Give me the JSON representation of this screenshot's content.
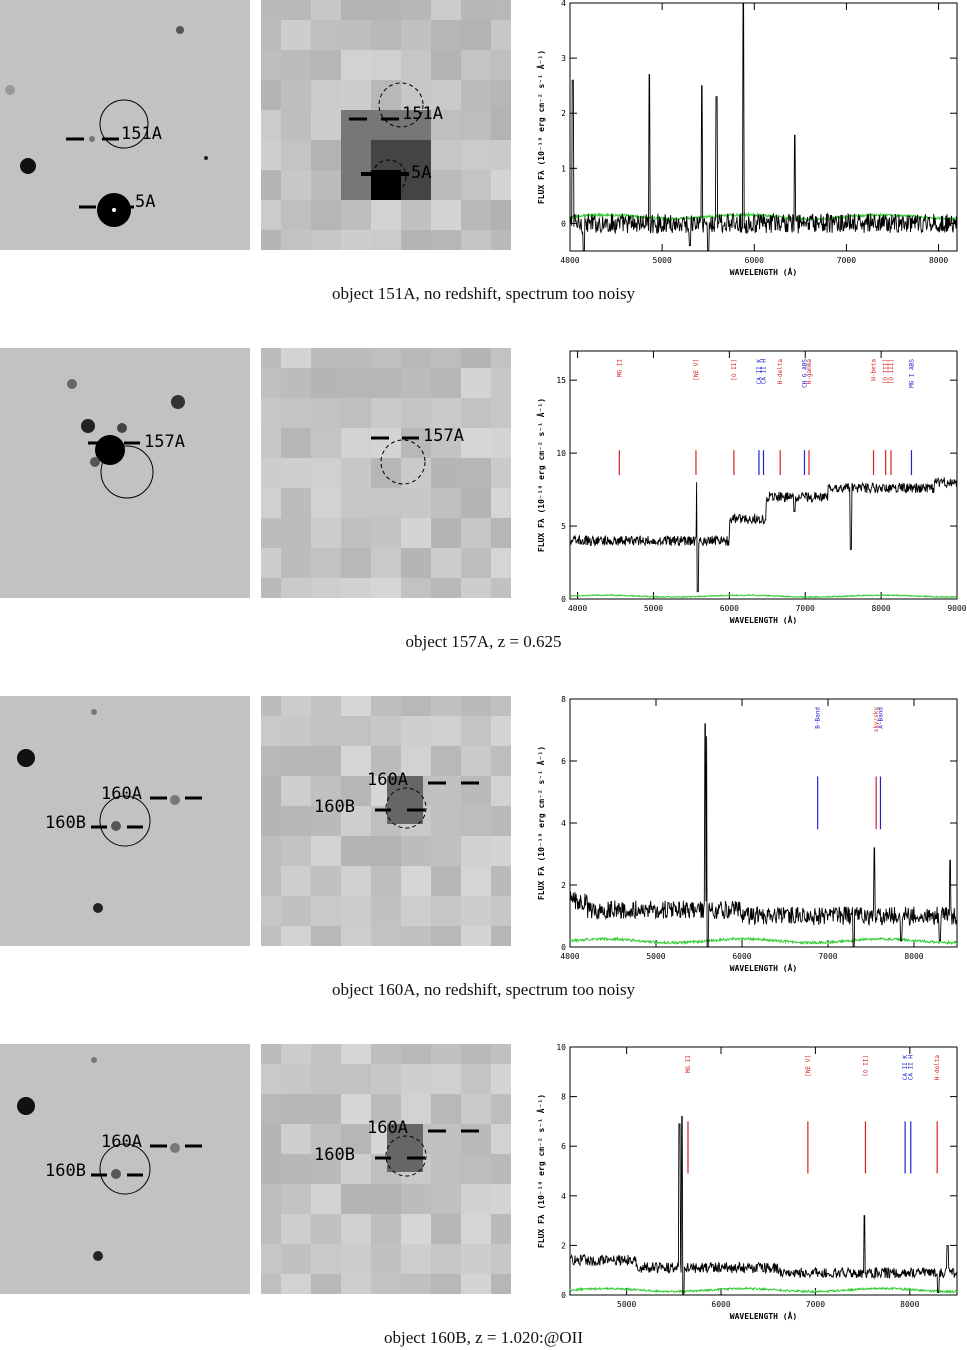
{
  "colors": {
    "flux": "#000000",
    "error": "#33cc33",
    "emission_line": "#d62020",
    "absorption_line": "#2020d6",
    "axis": "#000000"
  },
  "panels": [
    {
      "caption": "object 151A, no redshift, spectrum too noisy",
      "hst_labels": [
        "151A",
        "5A"
      ],
      "ground_labels": [
        "151A",
        "5A"
      ],
      "chart_data": {
        "type": "line",
        "xlabel": "WAVELENGTH (Å)",
        "ylabel": "FLUX Fλ (10⁻¹⁸ erg cm⁻² s⁻¹ Å⁻¹)",
        "xlim": [
          4000,
          8200
        ],
        "ylim": [
          -0.5,
          4
        ],
        "xticks": [
          4000,
          5000,
          6000,
          7000,
          8000
        ],
        "yticks": [
          0,
          1,
          2,
          3,
          4
        ],
        "baseline": 0.0,
        "noise": 0.18,
        "error_level": 0.12,
        "spikes": [
          [
            4030,
            2.6
          ],
          [
            4860,
            2.7
          ],
          [
            5430,
            2.5
          ],
          [
            5590,
            2.3
          ],
          [
            5880,
            4.0
          ],
          [
            6440,
            1.6
          ]
        ],
        "dips": [
          [
            4150,
            -0.5
          ],
          [
            5500,
            -0.5
          ],
          [
            5300,
            -0.4
          ]
        ],
        "steps": [],
        "line_markers": []
      }
    },
    {
      "caption": "object 157A, z = 0.625",
      "hst_labels": [
        "157A"
      ],
      "ground_labels": [
        "157A"
      ],
      "chart_data": {
        "type": "line",
        "xlabel": "WAVELENGTH (Å)",
        "ylabel": "FLUX Fλ (10⁻¹⁸ erg cm⁻² s⁻¹ Å⁻¹)",
        "xlim": [
          3900,
          9000
        ],
        "ylim": [
          0,
          17
        ],
        "xticks": [
          4000,
          5000,
          6000,
          7000,
          8000,
          9000
        ],
        "yticks": [
          0,
          5,
          10,
          15
        ],
        "baseline": 4.0,
        "noise": 0.35,
        "error_level": 0.2,
        "spikes": [
          [
            5570,
            8.0
          ]
        ],
        "dips": [
          [
            5580,
            0.5
          ],
          [
            7600,
            3.4
          ],
          [
            6860,
            6.0
          ]
        ],
        "steps": [
          [
            6000,
            1.5
          ],
          [
            6480,
            1.5
          ],
          [
            7300,
            0.6
          ],
          [
            8700,
            0.4
          ]
        ],
        "line_markers": [
          {
            "label": "MG II",
            "x": 4550,
            "kind": "emission"
          },
          {
            "label": "[NE V]",
            "x": 5560,
            "kind": "emission"
          },
          {
            "label": "[O II]",
            "x": 6060,
            "kind": "emission"
          },
          {
            "label": "CA II K",
            "x": 6390,
            "kind": "absorption"
          },
          {
            "label": "CA II H",
            "x": 6450,
            "kind": "absorption"
          },
          {
            "label": "H-delta",
            "x": 6670,
            "kind": "emission"
          },
          {
            "label": "CH G ABS",
            "x": 6990,
            "kind": "absorption"
          },
          {
            "label": "H-gamma",
            "x": 7050,
            "kind": "emission"
          },
          {
            "label": "H-beta",
            "x": 7900,
            "kind": "emission"
          },
          {
            "label": "[O III]",
            "x": 8060,
            "kind": "emission"
          },
          {
            "label": "[O III]",
            "x": 8130,
            "kind": "emission"
          },
          {
            "label": "MG I ABS",
            "x": 8400,
            "kind": "absorption"
          }
        ]
      }
    },
    {
      "caption": "object 160A, no redshift, spectrum too noisy",
      "hst_labels": [
        "160A",
        "160B"
      ],
      "ground_labels": [
        "160A",
        "160B"
      ],
      "chart_data": {
        "type": "line",
        "xlabel": "WAVELENGTH (Å)",
        "ylabel": "FLUX Fλ (10⁻¹⁸ erg cm⁻² s⁻¹ Å⁻¹)",
        "xlim": [
          4000,
          8500
        ],
        "ylim": [
          0,
          8
        ],
        "xticks": [
          4000,
          5000,
          6000,
          7000,
          8000
        ],
        "yticks": [
          0,
          2,
          4,
          6,
          8
        ],
        "baseline": 1.5,
        "noise": 0.3,
        "error_level": 0.2,
        "spikes": [
          [
            5570,
            7.2
          ],
          [
            5590,
            6.8
          ],
          [
            7540,
            3.2
          ],
          [
            8420,
            2.8
          ]
        ],
        "dips": [
          [
            5600,
            0.0
          ],
          [
            7300,
            0.0
          ],
          [
            7850,
            0.2
          ],
          [
            8300,
            0.2
          ]
        ],
        "steps": [
          [
            4200,
            -0.3
          ],
          [
            6000,
            -0.2
          ]
        ],
        "line_markers": [
          {
            "label": "B-Band",
            "x": 6880,
            "kind": "absorption"
          },
          {
            "label": "sky/sky",
            "x": 7560,
            "kind": "emission"
          },
          {
            "label": "A-Band",
            "x": 7610,
            "kind": "absorption"
          }
        ]
      }
    },
    {
      "caption": "object 160B, z = 1.020:@OII",
      "hst_labels": [
        "160A",
        "160B"
      ],
      "ground_labels": [
        "160A",
        "160B"
      ],
      "chart_data": {
        "type": "line",
        "xlabel": "WAVELENGTH (Å)",
        "ylabel": "FLUX Fλ (10⁻¹⁸ erg cm⁻² s⁻¹ Å⁻¹)",
        "xlim": [
          4400,
          8500
        ],
        "ylim": [
          0,
          10
        ],
        "xticks": [
          5000,
          6000,
          7000,
          8000
        ],
        "yticks": [
          0,
          2,
          4,
          6,
          8,
          10
        ],
        "baseline": 1.4,
        "noise": 0.22,
        "error_level": 0.2,
        "spikes": [
          [
            5560,
            6.9
          ],
          [
            5590,
            7.2
          ],
          [
            7520,
            3.2
          ],
          [
            8400,
            2.0
          ]
        ],
        "dips": [
          [
            5600,
            0.0
          ],
          [
            8300,
            0.1
          ]
        ],
        "steps": [
          [
            5100,
            -0.3
          ],
          [
            6600,
            -0.2
          ]
        ],
        "line_markers": [
          {
            "label": "MG II",
            "x": 5650,
            "kind": "emission"
          },
          {
            "label": "[NE V]",
            "x": 6920,
            "kind": "emission"
          },
          {
            "label": "[O II]",
            "x": 7530,
            "kind": "emission"
          },
          {
            "label": "CA II K",
            "x": 7950,
            "kind": "absorption"
          },
          {
            "label": "CA II H",
            "x": 8010,
            "kind": "absorption"
          },
          {
            "label": "H-delta",
            "x": 8290,
            "kind": "emission"
          }
        ]
      }
    }
  ]
}
